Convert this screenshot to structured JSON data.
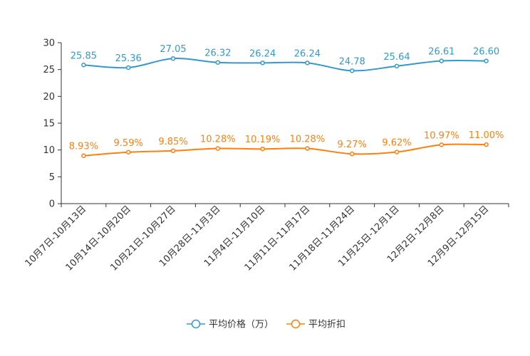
{
  "chart_data": {
    "type": "line",
    "title": "",
    "xlabel": "",
    "ylabel": "",
    "ylim": [
      0,
      30
    ],
    "yticks": [
      0,
      5,
      10,
      15,
      20,
      25,
      30
    ],
    "grid": false,
    "legend_position": "bottom-center",
    "categories": [
      "10月7日-10月13日",
      "10月14日-10月20日",
      "10月21日-10月27日",
      "10月28日-11月3日",
      "11月4日-11月10日",
      "11月11日-11月17日",
      "11月18日-11月24日",
      "11月25日-12月1日",
      "12月2日-12月8日",
      "12月9日-12月15日"
    ],
    "series": [
      {
        "name": "平均价格（万）",
        "color": "#3399cc",
        "values": [
          25.85,
          25.36,
          27.05,
          26.32,
          26.24,
          26.24,
          24.78,
          25.64,
          26.61,
          26.6
        ],
        "labels": [
          "25.85",
          "25.36",
          "27.05",
          "26.32",
          "26.24",
          "26.24",
          "24.78",
          "25.64",
          "26.61",
          "26.60"
        ]
      },
      {
        "name": "平均折扣",
        "color": "#ff7f0e",
        "values": [
          8.93,
          9.59,
          9.85,
          10.28,
          10.19,
          10.28,
          9.27,
          9.62,
          10.97,
          11.0
        ],
        "labels": [
          "8.93%",
          "9.59%",
          "9.85%",
          "10.28%",
          "10.19%",
          "10.28%",
          "9.27%",
          "9.62%",
          "10.97%",
          "11.00%"
        ]
      }
    ]
  }
}
